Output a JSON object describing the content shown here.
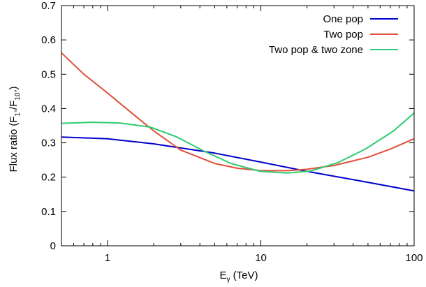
{
  "chart_data": {
    "type": "line",
    "title": "",
    "xlabel": {
      "main": "E",
      "sub": "γ",
      "rest": " (TeV)"
    },
    "ylabel": {
      "p1": "Flux ratio (F",
      "s1": "1°",
      "p2": "/F",
      "s2": "10°",
      "p3": ")"
    },
    "x_scale": "log",
    "xlim": [
      0.5,
      100
    ],
    "ylim": [
      0,
      0.7
    ],
    "x_ticks": [
      1,
      10,
      100
    ],
    "x_tick_labels": [
      "1",
      "10",
      "100"
    ],
    "y_ticks": [
      0,
      0.1,
      0.2,
      0.3,
      0.4,
      0.5,
      0.6,
      0.7
    ],
    "y_tick_labels": [
      "0",
      "0.1",
      "0.2",
      "0.3",
      "0.4",
      "0.5",
      "0.6",
      "0.7"
    ],
    "grid": false,
    "legend_position": "top-right",
    "series": [
      {
        "name": "One pop",
        "color": "#0000cc",
        "points": [
          [
            0.5,
            0.317
          ],
          [
            1,
            0.312
          ],
          [
            2,
            0.297
          ],
          [
            5,
            0.27
          ],
          [
            10,
            0.244
          ],
          [
            20,
            0.217
          ],
          [
            50,
            0.185
          ],
          [
            100,
            0.16
          ]
        ]
      },
      {
        "name": "Two pop",
        "color": "#e0503c",
        "points": [
          [
            0.5,
            0.562
          ],
          [
            0.7,
            0.5
          ],
          [
            1,
            0.445
          ],
          [
            1.5,
            0.38
          ],
          [
            2,
            0.335
          ],
          [
            3,
            0.279
          ],
          [
            5,
            0.24
          ],
          [
            7,
            0.226
          ],
          [
            10,
            0.219
          ],
          [
            15,
            0.219
          ],
          [
            20,
            0.223
          ],
          [
            30,
            0.234
          ],
          [
            50,
            0.258
          ],
          [
            70,
            0.282
          ],
          [
            100,
            0.312
          ]
        ]
      },
      {
        "name": "Two pop & two zone",
        "color": "#2ecc71",
        "points": [
          [
            0.5,
            0.357
          ],
          [
            0.8,
            0.36
          ],
          [
            1.2,
            0.358
          ],
          [
            1.9,
            0.346
          ],
          [
            2.8,
            0.318
          ],
          [
            4.3,
            0.275
          ],
          [
            6.4,
            0.24
          ],
          [
            9.9,
            0.217
          ],
          [
            14.7,
            0.212
          ],
          [
            21.2,
            0.218
          ],
          [
            32,
            0.243
          ],
          [
            48.2,
            0.282
          ],
          [
            73.5,
            0.335
          ],
          [
            100,
            0.387
          ]
        ]
      }
    ]
  }
}
